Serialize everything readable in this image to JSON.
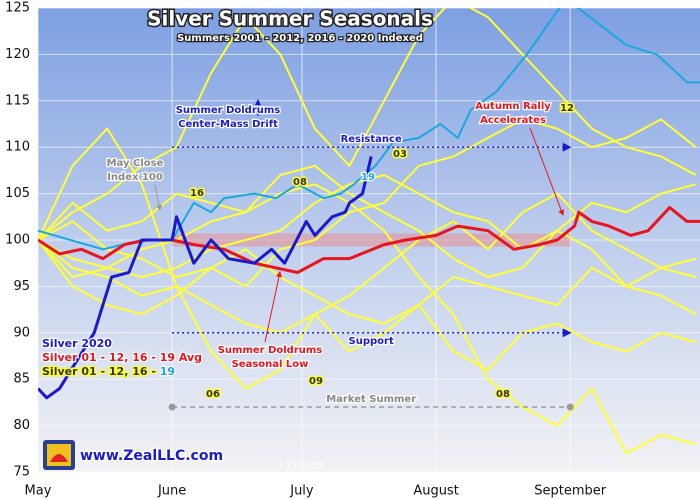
{
  "chart_data": {
    "type": "line",
    "title": "Silver Summer Seasonals",
    "subtitle": "Summers 2001 - 2012, 2016 - 2020 Indexed",
    "xlim": [
      0,
      153
    ],
    "xticks": [
      {
        "value": 0,
        "label": "May"
      },
      {
        "value": 31,
        "label": "June"
      },
      {
        "value": 61,
        "label": "July"
      },
      {
        "value": 92,
        "label": "August"
      },
      {
        "value": 123,
        "label": "September"
      }
    ],
    "ylim": [
      75,
      125
    ],
    "yticks": [
      75,
      80,
      85,
      90,
      95,
      100,
      105,
      110,
      115,
      120,
      125
    ],
    "grid": true,
    "series": [
      {
        "color": "#ffff33",
        "x": [
          0,
          8,
          16,
          24,
          32,
          40,
          48,
          56,
          64,
          72,
          80,
          88,
          96,
          104,
          112,
          120,
          128,
          136,
          144,
          152
        ],
        "values": [
          100,
          104,
          101,
          102,
          105,
          104,
          103,
          107,
          108,
          105,
          103,
          101,
          98,
          96,
          97,
          101,
          99,
          95,
          97,
          98
        ]
      },
      {
        "color": "#ffff33",
        "x": [
          0,
          8,
          16,
          24,
          32,
          40,
          48,
          56,
          64,
          72,
          80,
          88,
          96,
          104,
          112,
          120,
          128,
          136,
          144,
          152
        ],
        "values": [
          100,
          96,
          97,
          99,
          100,
          102,
          103,
          105,
          106,
          104,
          101,
          96,
          92,
          85,
          82,
          80,
          84,
          77,
          79,
          78
        ]
      },
      {
        "color": "#ffff33",
        "x": [
          0,
          8,
          16,
          24,
          32,
          40,
          48,
          56,
          64,
          72,
          80,
          88,
          96,
          104,
          112,
          120,
          128,
          136,
          144,
          152
        ],
        "values": [
          100,
          102,
          99,
          98,
          96,
          97,
          95,
          99,
          100,
          103,
          104,
          108,
          109,
          111,
          113,
          112,
          110,
          111,
          113,
          110
        ]
      },
      {
        "color": "#ffff33",
        "x": [
          0,
          8,
          16,
          24,
          32,
          40,
          48,
          56,
          64,
          72,
          80,
          88,
          96,
          104,
          112,
          120,
          128,
          136,
          144,
          152
        ],
        "values": [
          100,
          108,
          112,
          106,
          95,
          88,
          84,
          86,
          92,
          94,
          97,
          100,
          102,
          99,
          103,
          105,
          101,
          99,
          97,
          96
        ]
      },
      {
        "color": "#ffff33",
        "x": [
          0,
          8,
          16,
          24,
          32,
          40,
          48,
          56,
          64,
          72,
          80,
          88,
          96,
          104,
          112,
          120,
          128,
          136,
          144,
          152
        ],
        "values": [
          100,
          98,
          97,
          96,
          97,
          99,
          100,
          101,
          104,
          106,
          107,
          105,
          103,
          102,
          99,
          101,
          104,
          103,
          105,
          106
        ]
      },
      {
        "color": "#ffff33",
        "x": [
          0,
          8,
          16,
          24,
          32,
          40,
          48,
          56,
          64,
          72,
          80,
          88,
          96,
          104,
          112,
          120,
          128,
          136,
          144,
          152
        ],
        "values": [
          100,
          97,
          96,
          94,
          95,
          93,
          91,
          90,
          92,
          88,
          90,
          93,
          96,
          95,
          94,
          93,
          97,
          95,
          94,
          92
        ]
      },
      {
        "color": "#ffff33",
        "x": [
          0,
          8,
          16,
          24,
          32,
          40,
          48,
          56,
          64,
          72,
          80,
          88,
          96,
          104,
          112,
          120,
          128,
          136,
          144,
          152
        ],
        "values": [
          100,
          103,
          105,
          108,
          110,
          118,
          124,
          120,
          112,
          108,
          115,
          122,
          126,
          124,
          120,
          116,
          112,
          110,
          109,
          107
        ]
      },
      {
        "color": "#ffff33",
        "x": [
          0,
          8,
          16,
          24,
          32,
          40,
          48,
          56,
          64,
          72,
          80,
          88,
          96,
          104,
          112,
          120,
          128,
          136,
          144,
          152
        ],
        "values": [
          100,
          95,
          93,
          92,
          94,
          97,
          99,
          96,
          94,
          92,
          91,
          93,
          88,
          86,
          90,
          91,
          89,
          88,
          90,
          89
        ]
      },
      {
        "name": "19",
        "color": "#1aa7e0",
        "x": [
          0,
          15,
          24,
          31,
          36,
          40,
          43,
          50,
          55,
          60,
          66,
          70,
          73,
          78,
          82,
          88,
          93,
          97,
          100,
          106,
          113,
          119,
          122,
          136,
          143,
          150,
          153
        ],
        "values": [
          101,
          99,
          100,
          100,
          104,
          103,
          104.5,
          105,
          104.5,
          106,
          104.5,
          105,
          106,
          108,
          110.5,
          111,
          112.5,
          111,
          114,
          116,
          120,
          124,
          126,
          121,
          120,
          117,
          117
        ]
      },
      {
        "name": "Silver 01 - 12, 16 - 19 Avg",
        "color": "#e8141e",
        "x": [
          0,
          5,
          10,
          15,
          20,
          25,
          31,
          36,
          43,
          50,
          60,
          66,
          72,
          80,
          85,
          92,
          97,
          104,
          110,
          116,
          120,
          124,
          125,
          128,
          132,
          137,
          141,
          146,
          150,
          153
        ],
        "values": [
          100,
          98.5,
          99,
          98,
          99.5,
          100,
          100,
          99.5,
          99,
          97.5,
          96.5,
          98,
          98,
          99.5,
          100,
          100.5,
          101.5,
          101,
          99,
          99.5,
          100,
          101.5,
          103,
          102,
          101.5,
          100.5,
          101,
          103.5,
          102,
          102
        ]
      },
      {
        "name": "Silver 2020",
        "color": "#1a1acc",
        "x": [
          0,
          2,
          5,
          9,
          13,
          17,
          21,
          24,
          31,
          32,
          36,
          40,
          44,
          50,
          54,
          57,
          62,
          64,
          68,
          71,
          72,
          75,
          77
        ],
        "values": [
          84,
          83,
          84,
          87,
          90,
          96,
          96.5,
          100,
          100,
          102.5,
          97.5,
          100,
          98,
          97.5,
          99,
          97.5,
          102,
          100.5,
          102.5,
          103,
          104,
          105,
          109
        ]
      }
    ],
    "legend_prefix": "Silver 01 - 12, 16 - ",
    "band": {
      "y": [
        99.3,
        100.7
      ],
      "x": [
        31,
        123
      ]
    },
    "reference_lines": [
      {
        "label": "Resistance",
        "y": 110,
        "x": [
          31,
          123
        ]
      },
      {
        "label": "Support",
        "y": 90,
        "x": [
          31,
          123
        ]
      },
      {
        "label": "Market Summer",
        "y": 82,
        "x": [
          31,
          123
        ]
      }
    ],
    "annotations": {
      "drift": [
        "Summer Doldrums",
        "Center-Mass Drift"
      ],
      "may_close": [
        "May Close",
        "Index 100"
      ],
      "autumn": [
        "Autumn Rally",
        "Accelerates"
      ],
      "seasonal_low": [
        "Summer Doldrums",
        "Seasonal Low"
      ],
      "site": "www.ZealLLC.com",
      "date": "7.15.2020"
    },
    "year_labels": [
      "16",
      "08",
      "19",
      "03",
      "12",
      "06",
      "09",
      "08"
    ]
  }
}
